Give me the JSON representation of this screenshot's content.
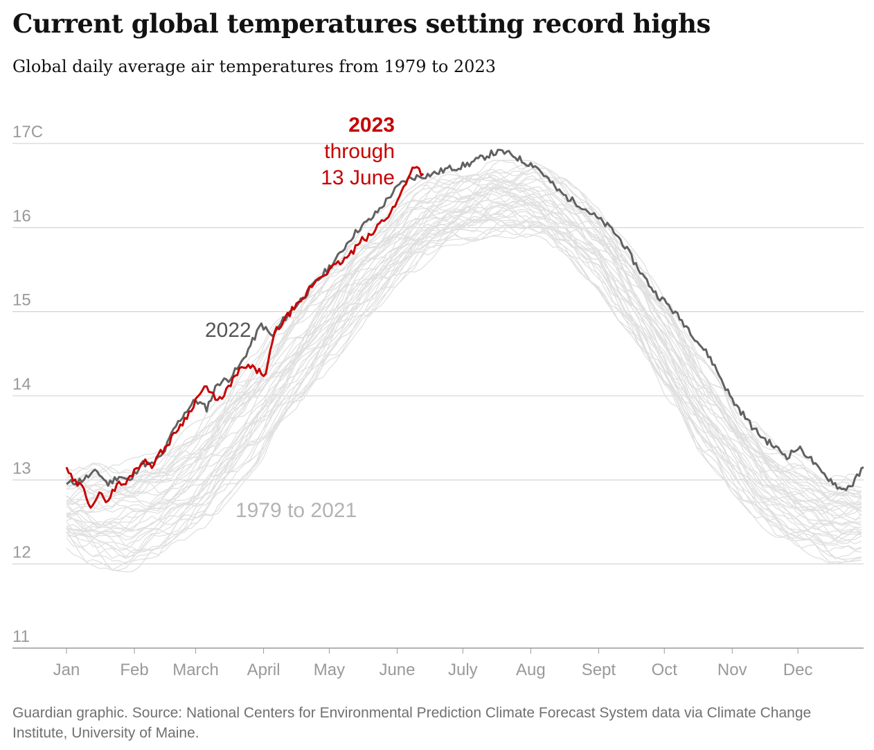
{
  "title": "Current global temperatures setting record highs",
  "subtitle": "Global daily average air temperatures from 1979 to 2023",
  "footer": "Guardian graphic. Source: National Centers for Environmental Prediction Climate Forecast System data via Climate Change Institute, University of Maine.",
  "colors": {
    "y2023": "#c70000",
    "y2022": "#616161",
    "historical": "#e0e0e0",
    "grid": "#cccccc"
  },
  "chart_data": {
    "type": "line",
    "title": "Current global temperatures setting record highs",
    "subtitle": "Global daily average air temperatures from 1979 to 2023",
    "ylim": [
      11,
      17
    ],
    "y_ticks": [
      11,
      12,
      13,
      14,
      15,
      16,
      17
    ],
    "y_tick_labels": [
      "11",
      "12",
      "13",
      "14",
      "15",
      "16",
      "17C"
    ],
    "x_tick_labels": [
      "Jan",
      "Feb",
      "March",
      "April",
      "May",
      "June",
      "July",
      "Aug",
      "Sept",
      "Oct",
      "Nov",
      "Dec"
    ],
    "x_unit": "day of year",
    "x_tick_days": [
      1,
      32,
      60,
      91,
      121,
      152,
      182,
      213,
      244,
      274,
      305,
      335
    ],
    "xlim": [
      1,
      365
    ],
    "grid": "horizontal",
    "annotations": {
      "y2023_title": "2023",
      "y2023_line1": "through",
      "y2023_line2": "13 June",
      "y2022": "2022",
      "historical": "1979 to 2021"
    },
    "series_2023": {
      "name": "2023",
      "x": [
        1,
        4,
        8,
        12,
        16,
        20,
        24,
        28,
        32,
        36,
        40,
        44,
        48,
        52,
        56,
        60,
        64,
        68,
        72,
        76,
        80,
        84,
        88,
        92,
        96,
        100,
        104,
        108,
        112,
        116,
        120,
        124,
        128,
        132,
        136,
        140,
        144,
        148,
        152,
        156,
        160,
        162,
        164
      ],
      "values": [
        13.15,
        12.98,
        12.92,
        12.7,
        12.82,
        12.76,
        12.95,
        12.95,
        13.12,
        13.22,
        13.18,
        13.32,
        13.45,
        13.62,
        13.75,
        13.95,
        14.1,
        14.0,
        13.95,
        14.15,
        14.3,
        14.35,
        14.3,
        14.25,
        14.75,
        14.88,
        15.02,
        15.1,
        15.28,
        15.4,
        15.48,
        15.55,
        15.62,
        15.72,
        15.85,
        15.9,
        16.05,
        16.15,
        16.3,
        16.55,
        16.75,
        16.68,
        16.64
      ]
    },
    "series_2022": {
      "name": "2022",
      "x": [
        1,
        8,
        15,
        20,
        25,
        30,
        35,
        40,
        45,
        50,
        55,
        60,
        65,
        70,
        75,
        80,
        85,
        90,
        95,
        100,
        105,
        110,
        115,
        120,
        125,
        130,
        135,
        140,
        145,
        150,
        155,
        160,
        165,
        170,
        175,
        180,
        185,
        190,
        195,
        200,
        205,
        210,
        215,
        220,
        225,
        230,
        235,
        240,
        245,
        250,
        255,
        260,
        265,
        270,
        275,
        280,
        285,
        290,
        295,
        300,
        305,
        310,
        315,
        320,
        325,
        330,
        335,
        340,
        345,
        350,
        355,
        360,
        365
      ],
      "values": [
        12.95,
        13.0,
        13.1,
        12.95,
        13.05,
        12.98,
        13.2,
        13.18,
        13.3,
        13.6,
        13.8,
        13.95,
        13.85,
        14.15,
        14.2,
        14.35,
        14.6,
        14.85,
        14.7,
        14.9,
        15.05,
        15.2,
        15.35,
        15.5,
        15.65,
        15.85,
        16.0,
        16.1,
        16.25,
        16.42,
        16.55,
        16.6,
        16.62,
        16.65,
        16.7,
        16.72,
        16.76,
        16.82,
        16.88,
        16.9,
        16.86,
        16.78,
        16.74,
        16.6,
        16.45,
        16.35,
        16.28,
        16.18,
        16.08,
        15.98,
        15.82,
        15.6,
        15.4,
        15.22,
        15.1,
        14.95,
        14.8,
        14.62,
        14.45,
        14.2,
        13.95,
        13.78,
        13.6,
        13.48,
        13.38,
        13.28,
        13.38,
        13.28,
        13.1,
        13.0,
        12.88,
        12.95,
        13.15
      ]
    },
    "series_1979_2021_envelope": {
      "name": "1979 to 2021",
      "x": [
        1,
        15,
        30,
        45,
        60,
        75,
        91,
        105,
        121,
        135,
        152,
        165,
        182,
        196,
        213,
        228,
        244,
        258,
        274,
        288,
        305,
        320,
        335,
        350,
        365
      ],
      "low": [
        12.2,
        12.0,
        11.95,
        12.1,
        12.35,
        12.8,
        13.3,
        13.8,
        14.35,
        14.85,
        15.3,
        15.6,
        15.85,
        15.95,
        15.9,
        15.65,
        15.3,
        14.75,
        14.05,
        13.45,
        12.9,
        12.45,
        12.2,
        12.05,
        12.1
      ],
      "high": [
        13.1,
        13.2,
        13.25,
        13.35,
        13.65,
        14.15,
        14.65,
        15.1,
        15.55,
        15.95,
        16.3,
        16.55,
        16.65,
        16.75,
        16.75,
        16.55,
        16.2,
        15.75,
        15.2,
        14.6,
        14.0,
        13.5,
        13.25,
        13.05,
        13.0
      ]
    }
  }
}
